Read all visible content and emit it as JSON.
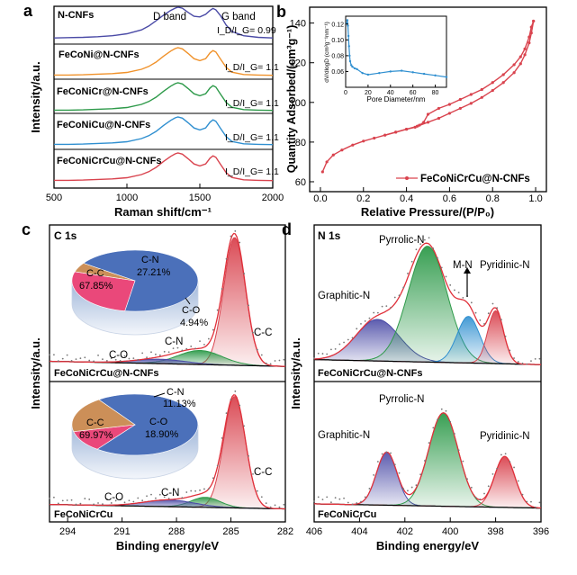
{
  "chart_data": [
    {
      "panel": "a",
      "type": "line",
      "xlabel": "Raman shift/cm⁻¹",
      "ylabel": "Intensity/a.u.",
      "xlim": [
        500,
        2000
      ],
      "xticks": [
        500,
        1000,
        1500,
        2000
      ],
      "band_labels": [
        "D band",
        "G band"
      ],
      "series": [
        {
          "name": "N-CNFs",
          "color": "#4a4aa6",
          "ratio_label": "I_D/I_G= 0.99",
          "x": [
            500,
            600,
            700,
            800,
            900,
            1000,
            1100,
            1150,
            1200,
            1250,
            1300,
            1330,
            1350,
            1380,
            1420,
            1460,
            1500,
            1540,
            1570,
            1590,
            1610,
            1640,
            1680,
            1720,
            1800,
            1900,
            2000
          ],
          "y": [
            0.05,
            0.06,
            0.07,
            0.09,
            0.12,
            0.18,
            0.3,
            0.42,
            0.58,
            0.75,
            0.9,
            0.97,
            1.0,
            0.97,
            0.84,
            0.72,
            0.7,
            0.78,
            0.9,
            0.96,
            0.92,
            0.75,
            0.45,
            0.25,
            0.12,
            0.07,
            0.05
          ]
        },
        {
          "name": "FeCoNi@N-CNFs",
          "color": "#f0922b",
          "ratio_label": "I_D/I_G= 1.1",
          "x": [
            500,
            600,
            700,
            800,
            900,
            1000,
            1100,
            1150,
            1200,
            1250,
            1300,
            1330,
            1350,
            1380,
            1420,
            1460,
            1500,
            1540,
            1570,
            1590,
            1610,
            1640,
            1680,
            1720,
            1800,
            1900,
            2000
          ],
          "y": [
            0.05,
            0.05,
            0.06,
            0.08,
            0.1,
            0.14,
            0.25,
            0.35,
            0.5,
            0.7,
            0.88,
            0.97,
            1.0,
            0.96,
            0.8,
            0.62,
            0.55,
            0.62,
            0.82,
            0.9,
            0.85,
            0.62,
            0.32,
            0.15,
            0.07,
            0.05,
            0.04
          ]
        },
        {
          "name": "FeCoNiCr@N-CNFs",
          "color": "#2e9a4a",
          "ratio_label": "I_D/I_G= 1.1",
          "x": [
            500,
            600,
            700,
            800,
            900,
            1000,
            1100,
            1150,
            1200,
            1250,
            1300,
            1330,
            1350,
            1380,
            1420,
            1460,
            1500,
            1540,
            1570,
            1590,
            1610,
            1640,
            1680,
            1720,
            1800,
            1900,
            2000
          ],
          "y": [
            0.05,
            0.05,
            0.06,
            0.08,
            0.1,
            0.14,
            0.25,
            0.35,
            0.5,
            0.7,
            0.88,
            0.97,
            1.0,
            0.96,
            0.8,
            0.62,
            0.55,
            0.62,
            0.82,
            0.9,
            0.85,
            0.62,
            0.32,
            0.15,
            0.07,
            0.05,
            0.04
          ]
        },
        {
          "name": "FeCoNiCu@N-CNFs",
          "color": "#2f8fd0",
          "ratio_label": "I_D/I_G= 1.1",
          "x": [
            500,
            600,
            700,
            800,
            900,
            1000,
            1100,
            1150,
            1200,
            1250,
            1300,
            1330,
            1350,
            1380,
            1420,
            1460,
            1500,
            1540,
            1570,
            1590,
            1610,
            1640,
            1680,
            1720,
            1800,
            1900,
            2000
          ],
          "y": [
            0.05,
            0.05,
            0.06,
            0.08,
            0.1,
            0.14,
            0.25,
            0.35,
            0.5,
            0.7,
            0.88,
            0.97,
            1.0,
            0.96,
            0.8,
            0.62,
            0.55,
            0.62,
            0.82,
            0.9,
            0.85,
            0.62,
            0.32,
            0.15,
            0.07,
            0.05,
            0.04
          ]
        },
        {
          "name": "FeCoNiCrCu@N-CNFs",
          "color": "#d9434e",
          "ratio_label": "I_D/I_G= 1.1",
          "x": [
            500,
            600,
            700,
            800,
            900,
            1000,
            1100,
            1150,
            1200,
            1250,
            1300,
            1330,
            1350,
            1380,
            1420,
            1460,
            1500,
            1540,
            1570,
            1590,
            1610,
            1640,
            1680,
            1720,
            1800,
            1900,
            2000
          ],
          "y": [
            0.05,
            0.05,
            0.06,
            0.08,
            0.1,
            0.14,
            0.25,
            0.35,
            0.5,
            0.7,
            0.88,
            0.97,
            1.0,
            0.96,
            0.8,
            0.62,
            0.55,
            0.62,
            0.82,
            0.9,
            0.85,
            0.62,
            0.32,
            0.15,
            0.07,
            0.05,
            0.04
          ]
        }
      ]
    },
    {
      "panel": "b",
      "type": "line",
      "xlabel": "Relative Pressure/(P/P₀)",
      "ylabel": "Quantity Adsorbed/(cm³g⁻¹)",
      "xlim": [
        -0.05,
        1.05
      ],
      "ylim": [
        55,
        148
      ],
      "xticks": [
        0.0,
        0.2,
        0.4,
        0.6,
        0.8,
        1.0
      ],
      "yticks": [
        60,
        80,
        100,
        120,
        140
      ],
      "legend": "FeCoNiCrCu@N-CNFs",
      "color": "#d9434e",
      "adsorption": {
        "x": [
          0.01,
          0.03,
          0.06,
          0.1,
          0.15,
          0.2,
          0.25,
          0.3,
          0.35,
          0.4,
          0.45,
          0.5,
          0.55,
          0.6,
          0.65,
          0.7,
          0.75,
          0.8,
          0.85,
          0.9,
          0.93,
          0.95,
          0.97,
          0.98,
          0.99
        ],
        "y": [
          65,
          70,
          73.5,
          76,
          78.5,
          80.5,
          82,
          83.5,
          85,
          86.5,
          88,
          90,
          92,
          94.5,
          97,
          99.5,
          102.5,
          106,
          110,
          115,
          119.5,
          124,
          130,
          135,
          141
        ]
      },
      "desorption": {
        "x": [
          0.99,
          0.98,
          0.97,
          0.95,
          0.93,
          0.9,
          0.85,
          0.8,
          0.75,
          0.7,
          0.65,
          0.6,
          0.55,
          0.5,
          0.48,
          0.46,
          0.44,
          0.4,
          0.35,
          0.3
        ],
        "y": [
          141,
          138,
          133,
          127,
          123,
          119,
          114,
          110,
          106.5,
          104,
          101.5,
          99,
          97,
          94,
          90,
          88.5,
          87.5,
          86.5,
          85,
          83.5
        ]
      },
      "inset": {
        "xlabel": "Pore Diameter/nm",
        "ylabel": "dV/dlogD (cm³g⁻¹nm⁻¹)",
        "xlim": [
          0,
          90
        ],
        "ylim": [
          0.04,
          0.13
        ],
        "xticks": [
          0,
          20,
          40,
          60,
          80
        ],
        "yticks": [
          0.06,
          0.08,
          0.1,
          0.12
        ],
        "x": [
          1,
          1.5,
          2,
          2.5,
          3,
          3.5,
          4,
          5,
          6,
          8,
          10,
          15,
          20,
          30,
          40,
          50,
          60,
          70,
          80,
          90
        ],
        "y": [
          0.121,
          0.125,
          0.118,
          0.105,
          0.092,
          0.08,
          0.073,
          0.068,
          0.066,
          0.064,
          0.063,
          0.058,
          0.056,
          0.058,
          0.06,
          0.061,
          0.059,
          0.057,
          0.055,
          0.053
        ]
      }
    },
    {
      "panel": "c",
      "type": "area",
      "title": "C 1s",
      "xlabel": "Binding energy/eV",
      "ylabel": "Intensity/a.u.",
      "xlim": [
        295,
        282
      ],
      "xticks": [
        294,
        291,
        288,
        285,
        282
      ],
      "samples": [
        {
          "name": "FeCoNiCrCu@N-CNFs",
          "peaks": [
            {
              "label": "C-C",
              "center": 284.8,
              "height": 1.0,
              "width": 0.6
            },
            {
              "label": "C-N",
              "center": 286.7,
              "height": 0.11,
              "width": 1.2
            },
            {
              "label": "C-O",
              "center": 288.9,
              "height": 0.035,
              "width": 1.4
            }
          ],
          "pie": [
            {
              "label": "C-C",
              "value": 67.85,
              "text": "67.85%"
            },
            {
              "label": "C-N",
              "value": 27.21,
              "text": "27.21%"
            },
            {
              "label": "C-O",
              "value": 4.94,
              "text": "4.94%"
            }
          ]
        },
        {
          "name": "FeCoNiCrCu",
          "peaks": [
            {
              "label": "C-C",
              "center": 284.8,
              "height": 1.0,
              "width": 0.6
            },
            {
              "label": "C-N",
              "center": 286.4,
              "height": 0.09,
              "width": 0.8
            },
            {
              "label": "C-O",
              "center": 288.4,
              "height": 0.06,
              "width": 1.4
            }
          ],
          "pie": [
            {
              "label": "C-C",
              "value": 69.97,
              "text": "69.97%"
            },
            {
              "label": "C-N",
              "value": 11.13,
              "text": "11.13%"
            },
            {
              "label": "C-O",
              "value": 18.9,
              "text": "18.90%"
            }
          ]
        }
      ]
    },
    {
      "panel": "d",
      "type": "area",
      "title": "N 1s",
      "xlabel": "Binding energy/eV",
      "ylabel": "Intensity/a.u.",
      "xlim": [
        406,
        396
      ],
      "xticks": [
        406,
        404,
        402,
        400,
        398,
        396
      ],
      "samples": [
        {
          "name": "FeCoNiCrCu@N-CNFs",
          "peaks": [
            {
              "label": "Graphitic-N",
              "center": 403.2,
              "height": 0.33,
              "width": 0.95
            },
            {
              "label": "Pyrrolic-N",
              "center": 401.0,
              "height": 0.92,
              "width": 0.85
            },
            {
              "label": "M-N",
              "center": 399.2,
              "height": 0.37,
              "width": 0.5
            },
            {
              "label": "Pyridinic-N",
              "center": 398.0,
              "height": 0.42,
              "width": 0.35
            }
          ]
        },
        {
          "name": "FeCoNiCrCu",
          "peaks": [
            {
              "label": "Graphitic-N",
              "center": 402.8,
              "height": 0.5,
              "width": 0.45
            },
            {
              "label": "Pyrrolic-N",
              "center": 400.3,
              "height": 0.88,
              "width": 0.65
            },
            {
              "label": "Pyridinic-N",
              "center": 397.6,
              "height": 0.48,
              "width": 0.45
            }
          ]
        }
      ]
    }
  ],
  "panel_letters": [
    "a",
    "b",
    "c",
    "d"
  ],
  "colors": {
    "cc": "#d9434e",
    "cn": "#2e9a4a",
    "co": "#4a4aa6",
    "graphitic": "#4a4aa6",
    "pyrrolic": "#2e9a4a",
    "mn": "#2f8fd0",
    "pyridinic": "#d9434e",
    "envelope": "#e0303a",
    "pie_cc": "#3c64b4",
    "pie_cn": "#e8386f",
    "pie_co": "#c8854a"
  }
}
